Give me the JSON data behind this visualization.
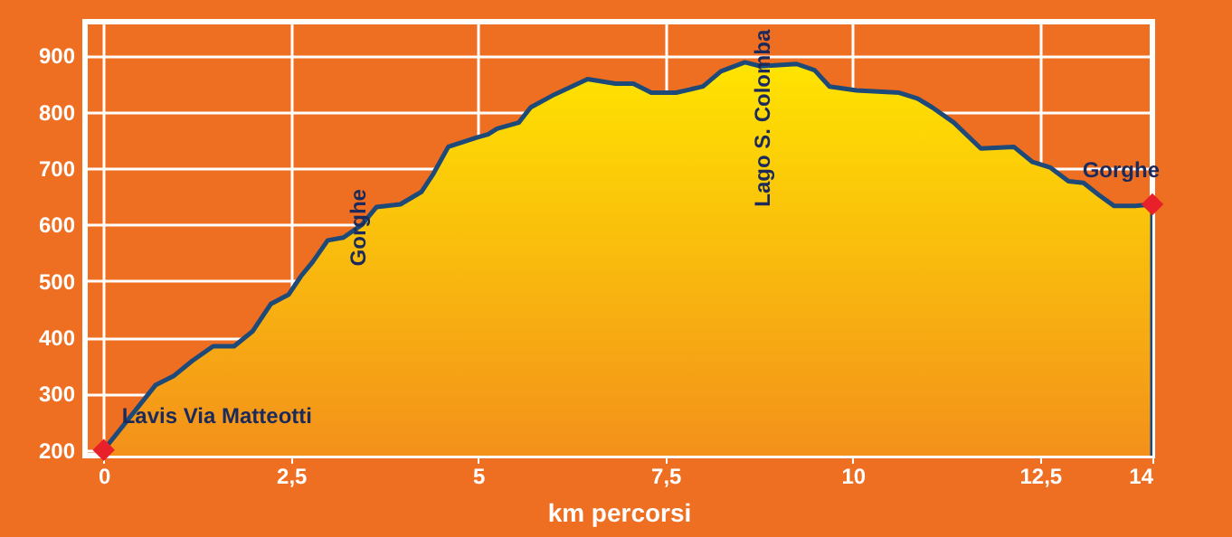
{
  "chart_data": {
    "type": "area",
    "xlabel": "km percorsi",
    "xlim": [
      -0.25,
      14
    ],
    "ylim": [
      190,
      960
    ],
    "xticks": [
      0,
      {
        "value": 2.5,
        "label": "2,5"
      },
      5,
      {
        "value": 7.5,
        "label": "7,5"
      },
      10,
      {
        "value": 12.5,
        "label": "12,5"
      },
      14
    ],
    "yticks": [
      200,
      300,
      400,
      500,
      600,
      700,
      800,
      900
    ],
    "grid": true,
    "series": [
      {
        "color": "#1d4a78",
        "x": [
          0,
          0.69,
          0.93,
          1.18,
          1.46,
          1.74,
          1.99,
          2.23,
          2.47,
          2.63,
          2.79,
          2.99,
          3.2,
          3.44,
          3.64,
          3.96,
          4.24,
          4.4,
          4.6,
          4.97,
          5.13,
          5.25,
          5.54,
          5.7,
          6.02,
          6.46,
          6.83,
          7.07,
          7.31,
          7.64,
          8.0,
          8.24,
          8.56,
          8.77,
          9.25,
          9.49,
          9.69,
          10.05,
          10.62,
          10.86,
          11.06,
          11.35,
          11.71,
          12.15,
          12.4,
          12.64,
          12.88,
          13.08,
          13.29,
          13.49,
          13.77,
          14
        ],
        "values": [
          200,
          315,
          331,
          358,
          384,
          384,
          411,
          459,
          476,
          508,
          534,
          572,
          577,
          599,
          631,
          636,
          658,
          690,
          738,
          754,
          760,
          770,
          781,
          808,
          831,
          858,
          850,
          850,
          834,
          834,
          845,
          872,
          888,
          881,
          885,
          874,
          845,
          838,
          834,
          824,
          808,
          781,
          735,
          738,
          711,
          701,
          677,
          674,
          652,
          633,
          633,
          636
        ]
      },
      {
        "type": "scatter",
        "color": "#e8202a",
        "marker": "diamond",
        "x": [
          0,
          14
        ],
        "values": [
          200,
          636
        ]
      }
    ],
    "annotations": [
      {
        "text": "Lavis Via Matteotti",
        "x": 0,
        "y": 200
      },
      {
        "text": "Gorghe",
        "x": 3.4,
        "y": 599
      },
      {
        "text": "Lago S. Colomba",
        "x": 8.8,
        "y": 882
      },
      {
        "text": "Gorghe",
        "x": 14,
        "y": 636
      }
    ]
  }
}
